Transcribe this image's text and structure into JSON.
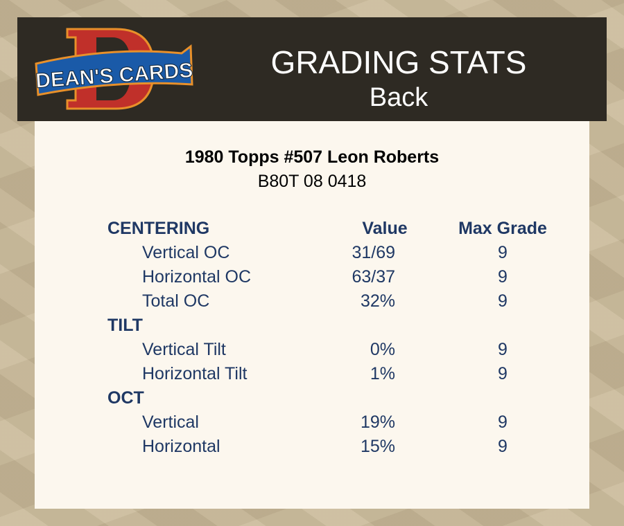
{
  "header": {
    "logo_text": "DEAN'S CARDS",
    "title": "GRADING STATS",
    "subtitle": "Back"
  },
  "card": {
    "name": "1980 Topps #507 Leon Roberts",
    "code": "B80T 08 0418"
  },
  "columns": {
    "value": "Value",
    "max": "Max Grade"
  },
  "sections": [
    {
      "title": "CENTERING",
      "rows": [
        {
          "label": "Vertical OC",
          "value": "31/69",
          "max": "9"
        },
        {
          "label": "Horizontal OC",
          "value": "63/37",
          "max": "9"
        },
        {
          "label": "Total OC",
          "value": "32%",
          "max": "9"
        }
      ]
    },
    {
      "title": "TILT",
      "rows": [
        {
          "label": "Vertical Tilt",
          "value": "0%",
          "max": "9"
        },
        {
          "label": "Horizontal Tilt",
          "value": "1%",
          "max": "9"
        }
      ]
    },
    {
      "title": "OCT",
      "rows": [
        {
          "label": "Vertical",
          "value": "19%",
          "max": "9"
        },
        {
          "label": "Horizontal",
          "value": "15%",
          "max": "9"
        }
      ]
    }
  ],
  "colors": {
    "text": "#1f3864",
    "header_bg": "#2e2a23",
    "panel_bg": "#fcf7ee"
  }
}
